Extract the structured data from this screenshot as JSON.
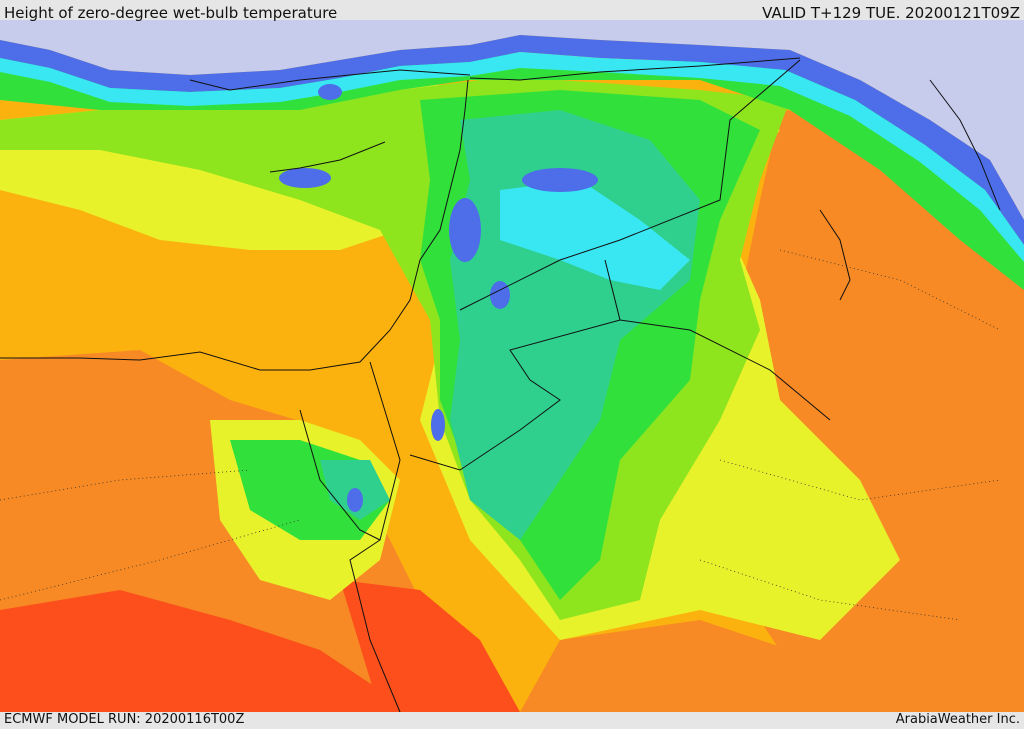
{
  "header": {
    "title": "Height of zero-degree wet-bulb temperature",
    "valid": "VALID T+129 TUE. 20200121T09Z"
  },
  "footer": {
    "model_run": "ECMWF MODEL RUN: 20200116T00Z",
    "credit": "ArabiaWeather Inc."
  },
  "palette": {
    "sea": "#c7cbec",
    "blue": "#4d6ee8",
    "cyan": "#39e7f2",
    "teal": "#2fcf8e",
    "green": "#32e03c",
    "lime": "#8ee51e",
    "yellow": "#e8f22a",
    "amber": "#fbb20e",
    "orange": "#f78a24",
    "red_orange": "#fc4f1b",
    "border": "#111111"
  }
}
